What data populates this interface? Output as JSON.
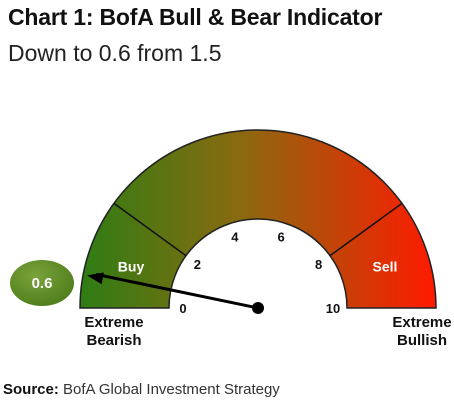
{
  "title": "Chart 1: BofA Bull & Bear Indicator",
  "subtitle": "Down to 0.6 from 1.5",
  "source_label": "Source:",
  "source_text": " BofA Global Investment Strategy",
  "colors": {
    "bearish": "#2e7d14",
    "neutral": "#8a6a10",
    "bullish": "#ff1a00",
    "badge": "#4f7d1c"
  },
  "chart_data": {
    "type": "gauge",
    "title": "Chart 1: BofA Bull & Bear Indicator",
    "subtitle": "Down to 0.6 from 1.5",
    "min": 0,
    "max": 10,
    "value": 0.6,
    "previous_value": 1.5,
    "ticks": [
      0,
      2,
      4,
      6,
      8,
      10
    ],
    "tick_labels": [
      "0",
      "2",
      "4",
      "6",
      "8",
      "10"
    ],
    "zones": [
      {
        "label": "Buy",
        "from": 0,
        "to": 2
      },
      {
        "label": "",
        "from": 2,
        "to": 8
      },
      {
        "label": "Sell",
        "from": 8,
        "to": 10
      }
    ],
    "value_label": "0.6",
    "min_label": [
      "Extreme",
      "Bearish"
    ],
    "max_label": [
      "Extreme",
      "Bullish"
    ]
  }
}
